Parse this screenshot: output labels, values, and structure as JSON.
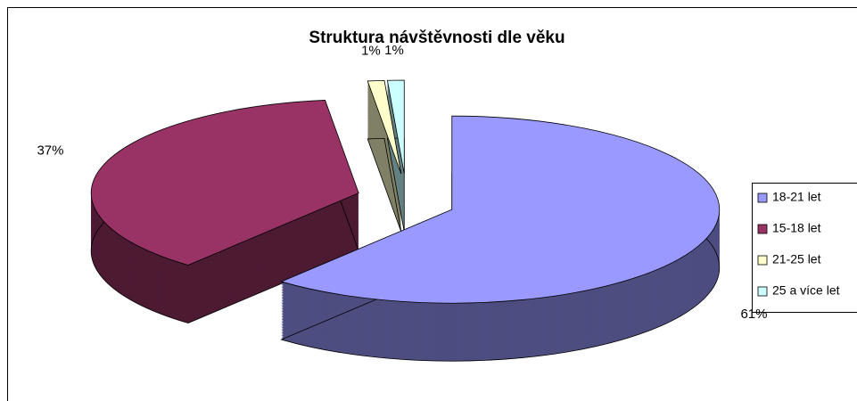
{
  "chart_data": {
    "type": "pie",
    "title": "Struktura návštěvnosti dle věku",
    "categories": [
      "18-21 let",
      "15-18 let",
      "21-25 let",
      "25 a více let"
    ],
    "values": [
      61,
      37,
      1,
      1
    ],
    "value_labels": [
      "61%",
      "37%",
      "1%",
      "1%"
    ],
    "colors": [
      "#9999ff",
      "#993366",
      "#ffffcc",
      "#ccffff"
    ],
    "legend": "right"
  }
}
